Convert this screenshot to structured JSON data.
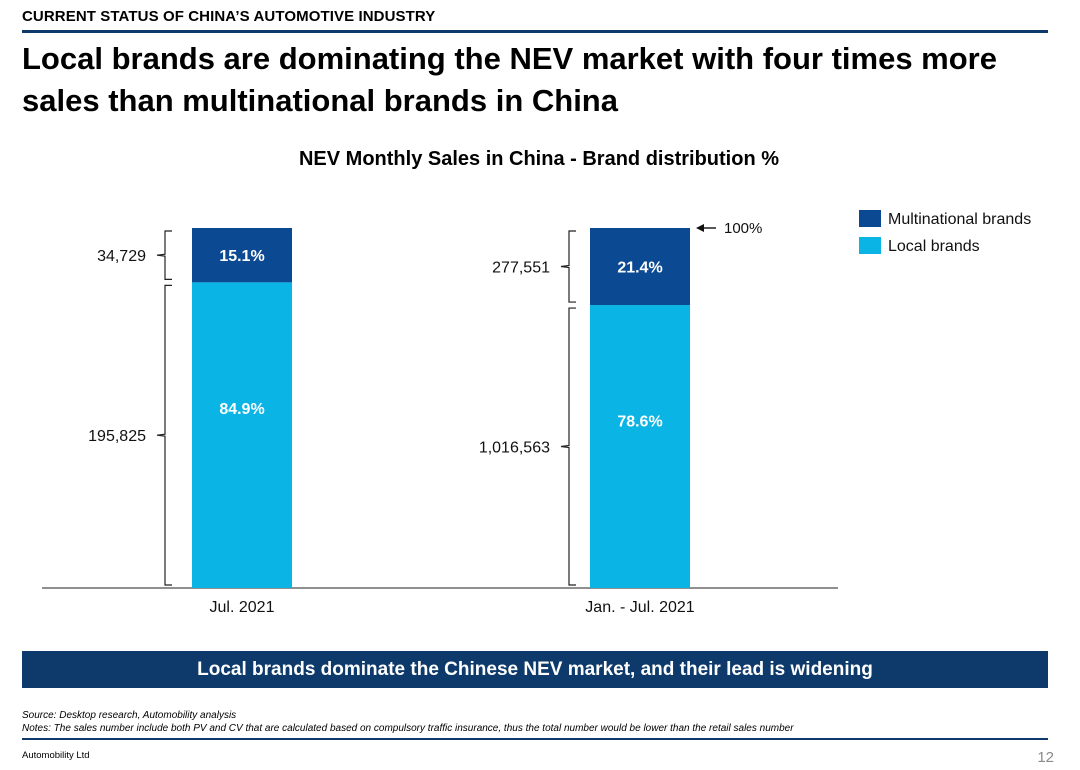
{
  "header": {
    "section_label": "CURRENT STATUS OF CHINA’S AUTOMOTIVE INDUSTRY",
    "headline": "Local brands are dominating the NEV market with four times more sales than multinational brands in China"
  },
  "chart_data": {
    "type": "bar",
    "stacked": true,
    "title": "NEV Monthly Sales in China - Brand distribution %",
    "categories": [
      "Jul. 2021",
      "Jan. - Jul. 2021"
    ],
    "series": [
      {
        "name": "Local brands",
        "color": "#0ab4e4",
        "percent_labels": [
          "84.9%",
          "78.6%"
        ],
        "values": [
          84.9,
          78.6
        ],
        "sales_labels": [
          "195,825",
          "1,016,563"
        ]
      },
      {
        "name": "Multinational brands",
        "color": "#0b4a93",
        "percent_labels": [
          "15.1%",
          "21.4%"
        ],
        "values": [
          15.1,
          21.4
        ],
        "sales_labels": [
          "34,729",
          "277,551"
        ]
      }
    ],
    "ylim": [
      0,
      100
    ],
    "total_annotation": "100%",
    "legend_position": "top-right",
    "grid": false
  },
  "banner": {
    "text": "Local brands dominate the Chinese NEV market, and their lead is widening"
  },
  "footer": {
    "source": "Source: Desktop research, Automobility analysis",
    "notes": "Notes: The sales number include both PV and CV that are calculated based on compulsory traffic insurance, thus the total number would be lower than the retail sales number",
    "company": "Automobility Ltd",
    "page_number": "12"
  }
}
